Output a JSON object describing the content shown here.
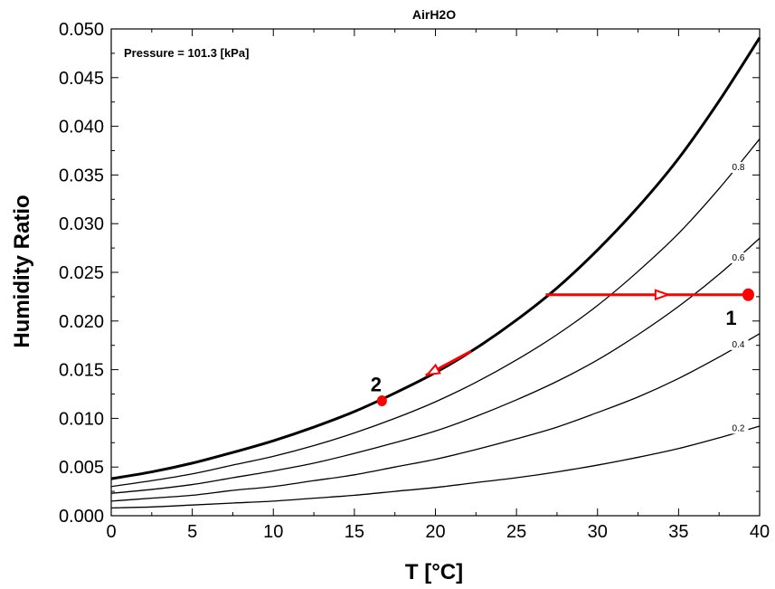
{
  "chart_data": {
    "type": "line",
    "title": "AirH2O",
    "annotation": "Pressure = 101.3 [kPa]",
    "xlabel": "T [°C]",
    "ylabel": "Humidity Ratio",
    "xlim": [
      0,
      40
    ],
    "ylim": [
      0,
      0.05
    ],
    "x_ticks": [
      "0",
      "5",
      "10",
      "15",
      "20",
      "25",
      "30",
      "35",
      "40"
    ],
    "y_ticks": [
      "0.000",
      "0.005",
      "0.010",
      "0.015",
      "0.020",
      "0.025",
      "0.030",
      "0.035",
      "0.040",
      "0.045",
      "0.050"
    ],
    "pressure_kpa": 101.3,
    "x": [
      0,
      2.5,
      5,
      7.5,
      10,
      12.5,
      15,
      17.5,
      20,
      22.5,
      25,
      27.5,
      30,
      32.5,
      35,
      37.5,
      40
    ],
    "series": [
      {
        "name": "",
        "label": "",
        "rh": 1.0,
        "values": [
          0.0038,
          0.0045,
          0.0054,
          0.0065,
          0.0077,
          0.0091,
          0.0107,
          0.0126,
          0.0147,
          0.0172,
          0.0201,
          0.0234,
          0.0273,
          0.0317,
          0.0367,
          0.0426,
          0.0491
        ]
      },
      {
        "name": "",
        "label": "0.8",
        "rh": 0.8,
        "values": [
          0.003,
          0.0036,
          0.0043,
          0.0052,
          0.0061,
          0.0072,
          0.0085,
          0.01,
          0.0117,
          0.0137,
          0.016,
          0.0186,
          0.0216,
          0.0251,
          0.029,
          0.0336,
          0.0387
        ]
      },
      {
        "name": "",
        "label": "0.6",
        "rh": 0.6,
        "values": [
          0.0023,
          0.0027,
          0.0032,
          0.0039,
          0.0046,
          0.0054,
          0.0064,
          0.0075,
          0.0087,
          0.0102,
          0.0119,
          0.0138,
          0.016,
          0.0186,
          0.0215,
          0.0248,
          0.0285
        ]
      },
      {
        "name": "",
        "label": "0.4",
        "rh": 0.4,
        "values": [
          0.0015,
          0.0018,
          0.0021,
          0.0026,
          0.003,
          0.0036,
          0.0042,
          0.005,
          0.0058,
          0.0068,
          0.0079,
          0.0091,
          0.0106,
          0.0122,
          0.0141,
          0.0163,
          0.0187
        ]
      },
      {
        "name": "",
        "label": "0.2",
        "rh": 0.2,
        "values": [
          0.0008,
          0.0009,
          0.0011,
          0.0013,
          0.0015,
          0.0018,
          0.0021,
          0.0025,
          0.0029,
          0.0034,
          0.0039,
          0.0045,
          0.0052,
          0.006,
          0.0069,
          0.008,
          0.0092
        ]
      }
    ],
    "rh_label_positions": [
      {
        "label": "0.8",
        "x": 38.3,
        "y": 0.0355
      },
      {
        "label": "0.6",
        "x": 38.3,
        "y": 0.0262
      },
      {
        "label": "0.4",
        "x": 38.3,
        "y": 0.0173
      },
      {
        "label": "0.2",
        "x": 38.3,
        "y": 0.0087
      }
    ],
    "process": {
      "color": "#ff0000",
      "path1": [
        [
          26.8,
          0.0227
        ],
        [
          39.3,
          0.0227
        ]
      ],
      "path1_arrow_at": [
        33.8,
        0.0227
      ],
      "path2": [
        [
          22.2,
          0.0169
        ],
        [
          19.4,
          0.0144
        ]
      ],
      "points": [
        {
          "label": "1",
          "x": 39.3,
          "y": 0.0227,
          "label_x": 37.9,
          "label_y": 0.0196
        },
        {
          "label": "2",
          "x": 16.7,
          "y": 0.0118,
          "label_x": 16.0,
          "label_y": 0.0128
        }
      ]
    },
    "grid": false,
    "legend": "none",
    "colors": {
      "curves": "#000000",
      "process": "#ff0000"
    }
  }
}
